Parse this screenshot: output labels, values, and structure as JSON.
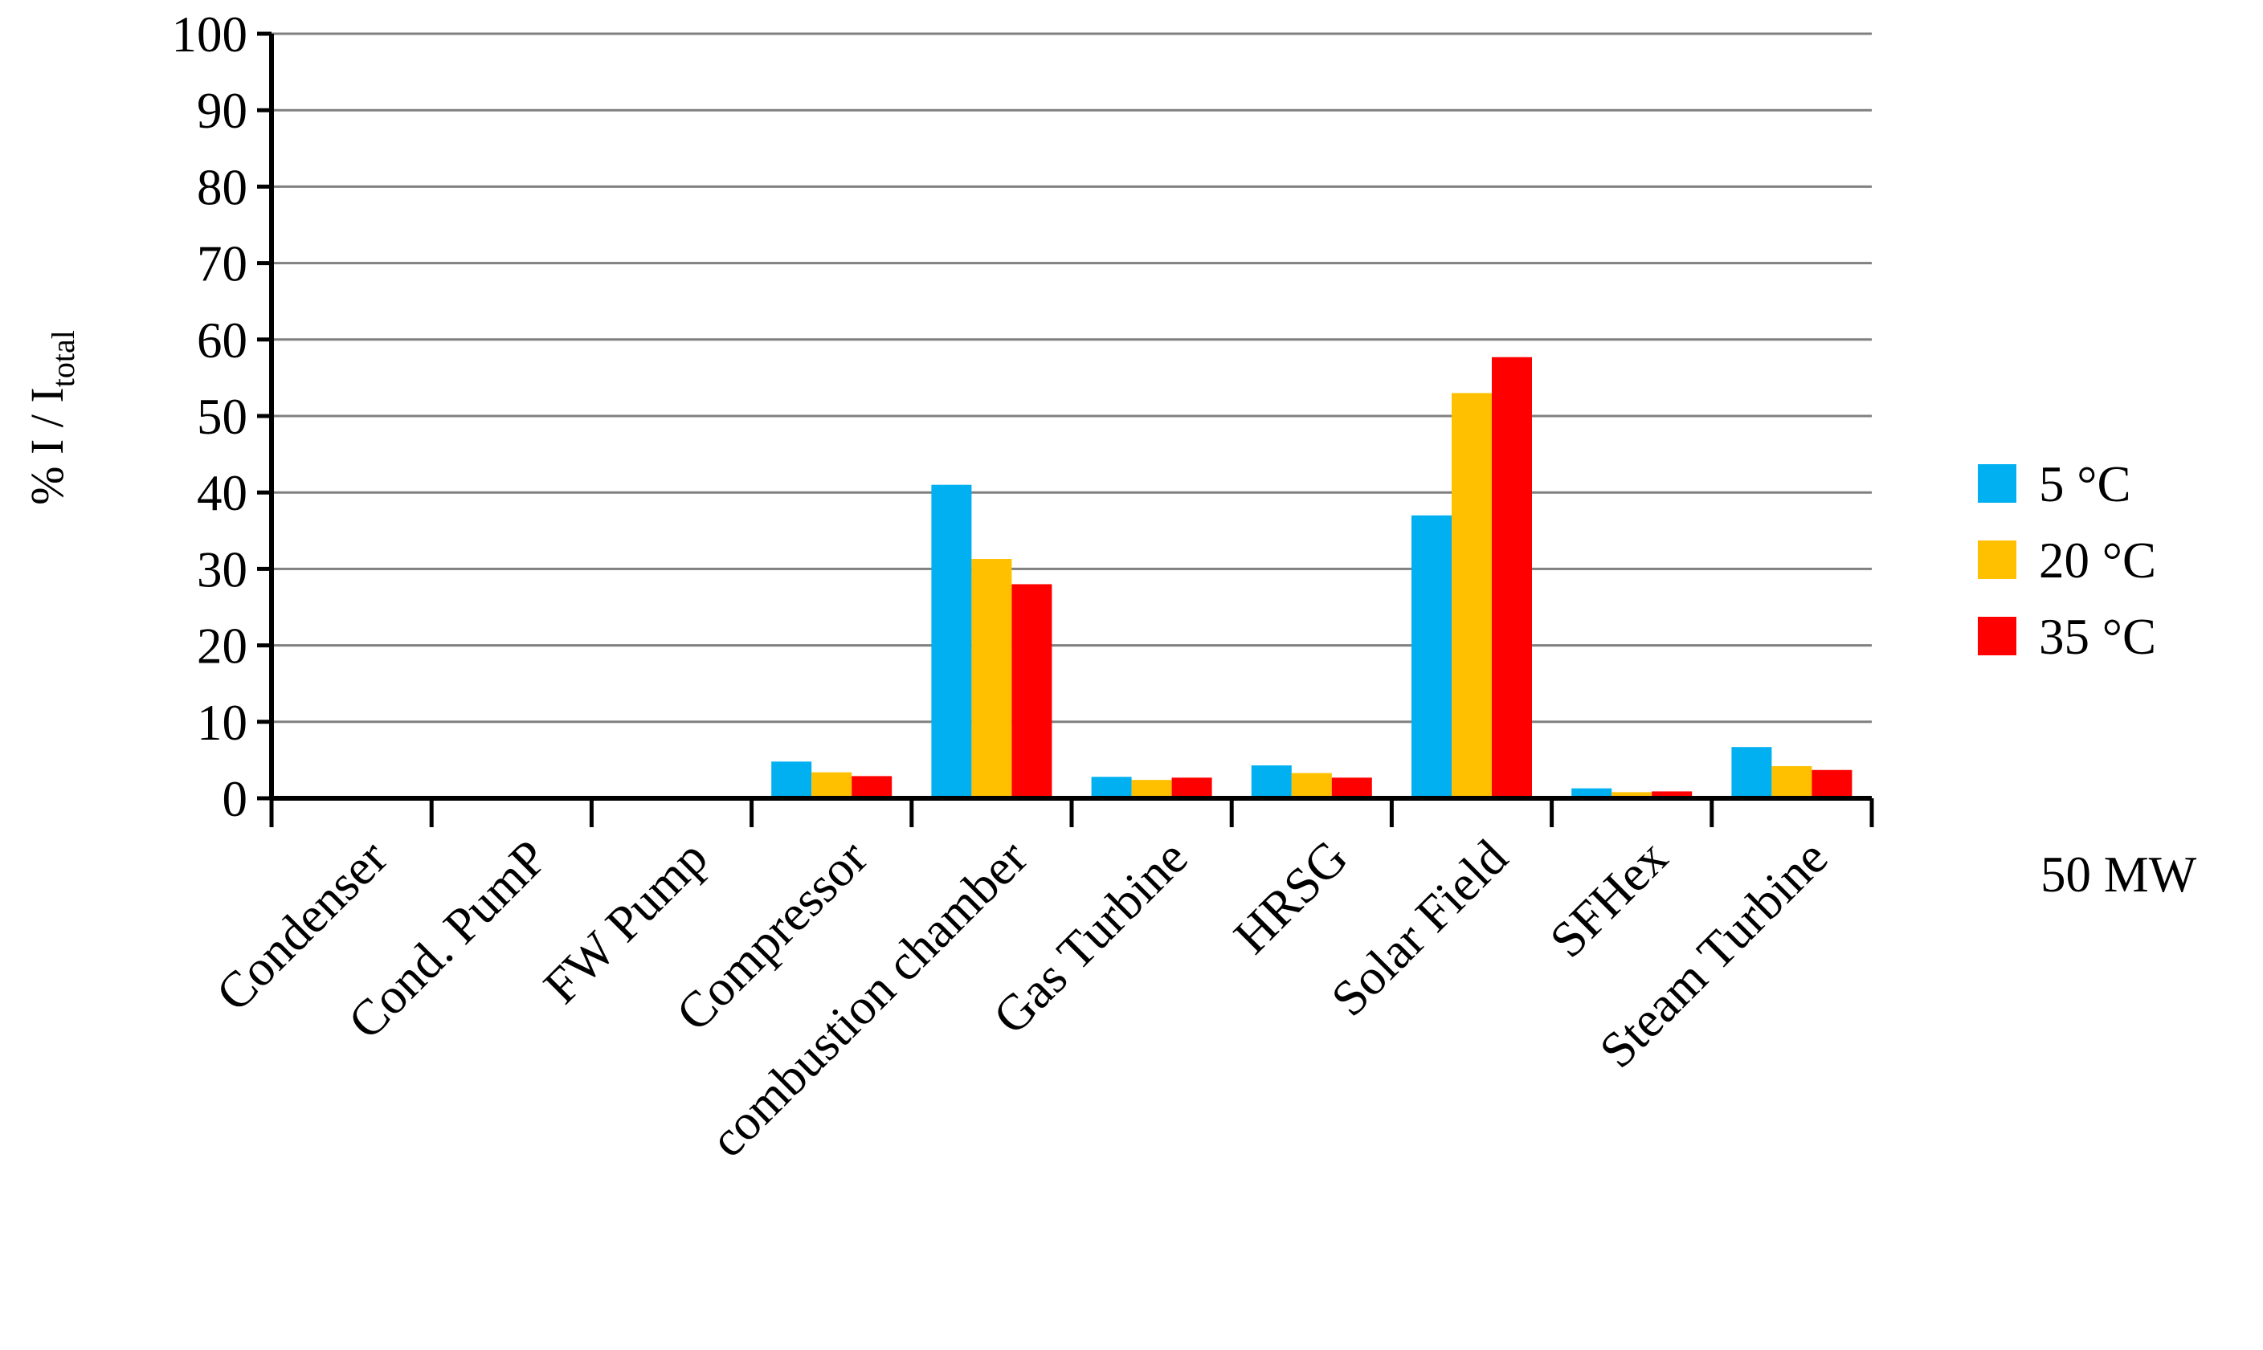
{
  "chart_data": {
    "type": "bar",
    "categories": [
      "Condenser",
      "Cond. PumP",
      "FW Pump",
      "Compressor",
      "combustion chamber",
      "Gas Turbine",
      "HRSG",
      "Solar Field",
      "SFHex",
      "Steam Turbine"
    ],
    "series": [
      {
        "name": "5 °C",
        "color": "#00B0F0",
        "values": [
          0,
          0,
          0,
          4.8,
          41.0,
          2.8,
          4.3,
          37.0,
          1.3,
          6.7
        ]
      },
      {
        "name": "20 °C",
        "color": "#FFC000",
        "values": [
          0,
          0,
          0,
          3.4,
          31.3,
          2.4,
          3.3,
          53.0,
          0.8,
          4.2
        ]
      },
      {
        "name": "35 °C",
        "color": "#FF0000",
        "values": [
          0,
          0,
          0,
          2.9,
          28.0,
          2.7,
          2.7,
          57.7,
          0.9,
          3.7
        ]
      }
    ],
    "ylabel_main": "% I / I",
    "ylabel_sub": "total",
    "ylim": [
      0,
      100
    ],
    "yticks": [
      0,
      10,
      20,
      30,
      40,
      50,
      60,
      70,
      80,
      90,
      100
    ],
    "grid": true,
    "legend_position": "right",
    "note": "50 MW"
  }
}
